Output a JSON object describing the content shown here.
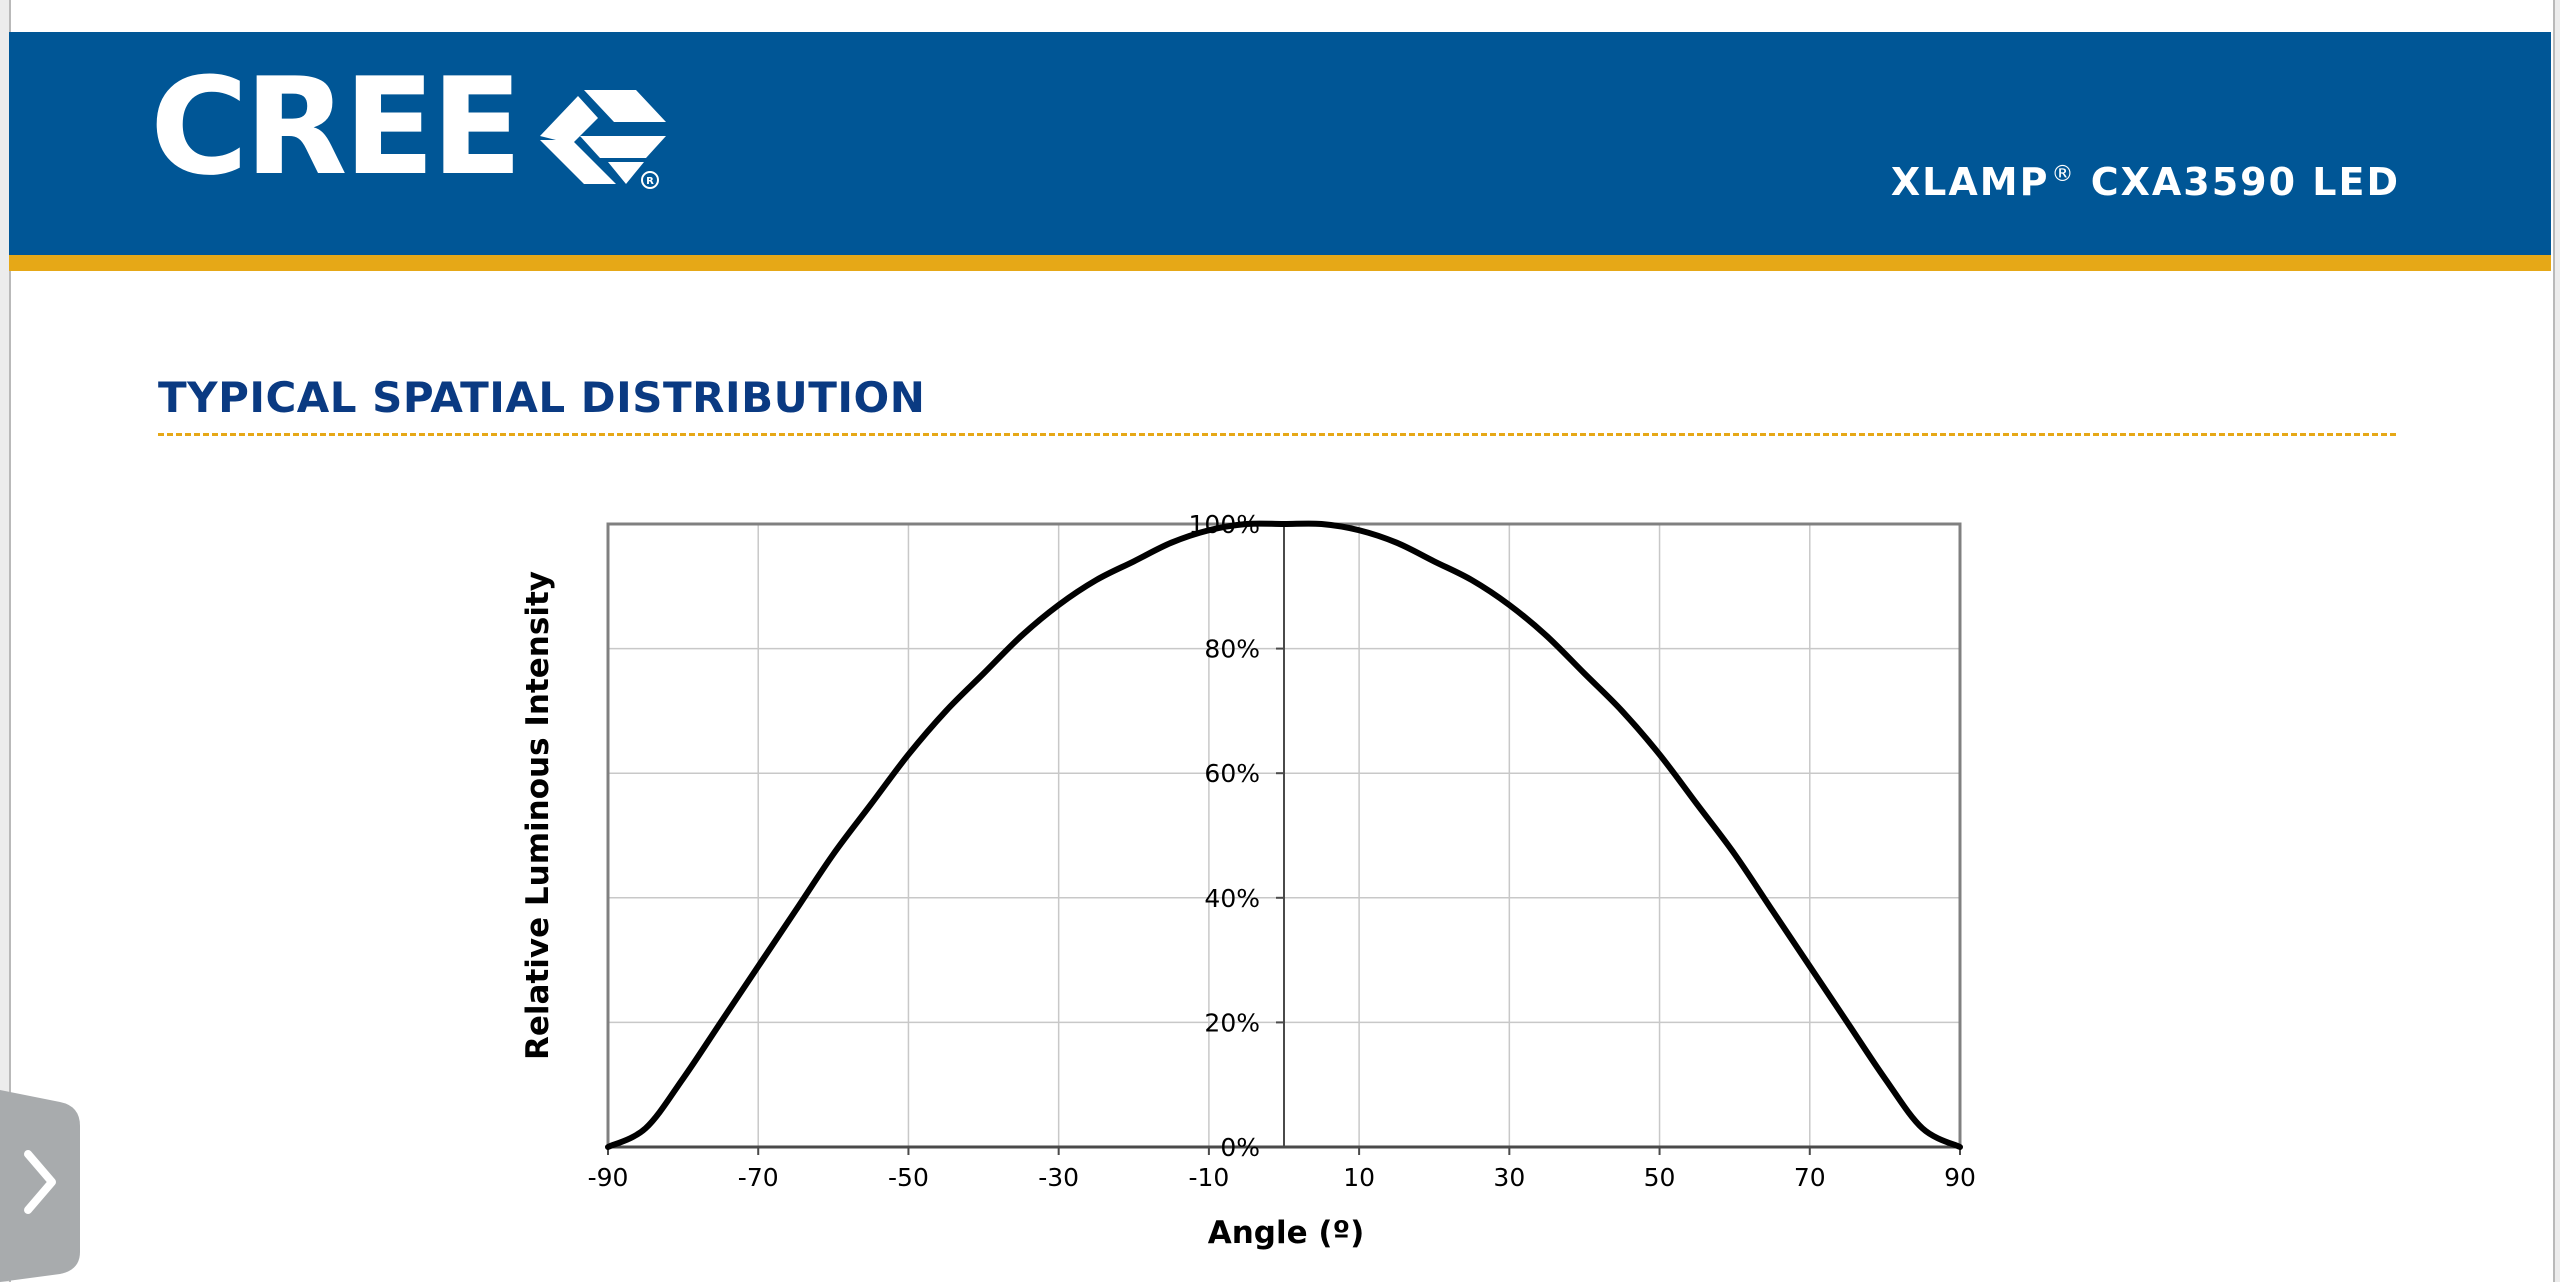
{
  "header": {
    "logo_text": "CREE",
    "product_name": "XLAMP",
    "registered_mark": "®",
    "product_model": "CXA3590 LED"
  },
  "section": {
    "title": "TYPICAL SPATIAL DISTRIBUTION"
  },
  "colors": {
    "brand_blue": "#005696",
    "accent_gold": "#e6a817",
    "title_blue": "#0a3a82"
  },
  "icons": {
    "logo_mark": "cree-chevron-logo-icon",
    "side_tab": "chevron-right-icon"
  },
  "chart_data": {
    "type": "line",
    "title": "",
    "xlabel": "Angle (º)",
    "ylabel": "Relative Luminous Intensity",
    "xlim": [
      -90,
      90
    ],
    "ylim": [
      0,
      100
    ],
    "x_ticks": [
      "-90",
      "-70",
      "-50",
      "-30",
      "-10",
      "10",
      "30",
      "50",
      "70",
      "90"
    ],
    "y_ticks": [
      "0%",
      "20%",
      "40%",
      "60%",
      "80%",
      "100%"
    ],
    "grid": true,
    "legend": "none",
    "series": [
      {
        "x": [
          -90,
          -85,
          -80,
          -75,
          -70,
          -65,
          -60,
          -55,
          -50,
          -45,
          -40,
          -35,
          -30,
          -25,
          -20,
          -15,
          -10,
          -5,
          0,
          5,
          10,
          15,
          20,
          25,
          30,
          35,
          40,
          45,
          50,
          55,
          60,
          65,
          70,
          75,
          80,
          85,
          90
        ],
        "y": [
          0,
          3,
          11,
          20,
          29,
          38,
          47,
          55,
          63,
          70,
          76,
          82,
          87,
          91,
          94,
          97,
          99,
          100,
          100,
          100,
          99,
          97,
          94,
          91,
          87,
          82,
          76,
          70,
          63,
          55,
          47,
          38,
          29,
          20,
          11,
          3,
          0
        ],
        "color": "#000000"
      }
    ]
  }
}
